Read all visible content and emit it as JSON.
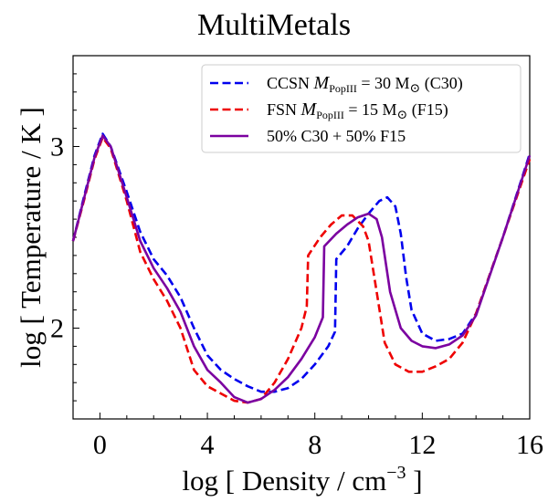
{
  "chart_data": {
    "type": "line",
    "title": "MultiMetals",
    "xlabel": "log [ Density / cm",
    "xlabel_sup": "−3",
    "xlabel_end": " ]",
    "ylabel": "log [ Temperature / K ]",
    "xlim": [
      -1,
      16
    ],
    "ylim": [
      1.5,
      3.5
    ],
    "xticks": [
      0,
      4,
      8,
      12,
      16
    ],
    "xtick_labels": [
      "0",
      "4",
      "8",
      "12",
      "16"
    ],
    "yticks": [
      2,
      3
    ],
    "ytick_labels": [
      "2",
      "3"
    ],
    "legend_position": "top-right",
    "grid": false,
    "series": [
      {
        "name": "CCSN M_PopIII = 30 M⊙ (C30)",
        "legend_parts": [
          "CCSN ",
          "M",
          "PopIII",
          " = 30 M",
          "⊙",
          " (C30)"
        ],
        "color": "#0000ee",
        "style": "dashed",
        "points": [
          [
            -1.0,
            2.48
          ],
          [
            -0.6,
            2.72
          ],
          [
            -0.2,
            2.95
          ],
          [
            0.1,
            3.07
          ],
          [
            0.4,
            3.0
          ],
          [
            1.0,
            2.75
          ],
          [
            1.5,
            2.53
          ],
          [
            2.0,
            2.38
          ],
          [
            2.5,
            2.29
          ],
          [
            3.0,
            2.17
          ],
          [
            3.5,
            2.0
          ],
          [
            4.0,
            1.85
          ],
          [
            4.5,
            1.77
          ],
          [
            5.0,
            1.72
          ],
          [
            5.5,
            1.68
          ],
          [
            6.0,
            1.65
          ],
          [
            6.5,
            1.65
          ],
          [
            7.0,
            1.67
          ],
          [
            7.5,
            1.72
          ],
          [
            8.0,
            1.8
          ],
          [
            8.5,
            1.9
          ],
          [
            8.75,
            1.98
          ],
          [
            8.8,
            2.38
          ],
          [
            9.2,
            2.45
          ],
          [
            9.6,
            2.55
          ],
          [
            10.0,
            2.63
          ],
          [
            10.4,
            2.7
          ],
          [
            10.7,
            2.72
          ],
          [
            11.0,
            2.67
          ],
          [
            11.2,
            2.52
          ],
          [
            11.4,
            2.28
          ],
          [
            11.6,
            2.1
          ],
          [
            12.0,
            1.97
          ],
          [
            12.5,
            1.93
          ],
          [
            13.0,
            1.94
          ],
          [
            13.5,
            1.97
          ],
          [
            14.0,
            2.08
          ],
          [
            15.0,
            2.5
          ],
          [
            16.0,
            2.96
          ]
        ]
      },
      {
        "name": "FSN M_PopIII = 15 M⊙ (F15)",
        "legend_parts": [
          "FSN  ",
          "M",
          "PopIII",
          " = 15 M",
          "⊙",
          " (F15)"
        ],
        "color": "#ee0000",
        "style": "dashed",
        "points": [
          [
            -1.0,
            2.48
          ],
          [
            -0.6,
            2.7
          ],
          [
            -0.2,
            2.93
          ],
          [
            0.1,
            3.05
          ],
          [
            0.4,
            2.99
          ],
          [
            1.0,
            2.7
          ],
          [
            1.5,
            2.42
          ],
          [
            2.0,
            2.27
          ],
          [
            2.5,
            2.15
          ],
          [
            3.0,
            2.0
          ],
          [
            3.5,
            1.77
          ],
          [
            4.0,
            1.68
          ],
          [
            4.5,
            1.64
          ],
          [
            5.0,
            1.6
          ],
          [
            5.5,
            1.59
          ],
          [
            6.0,
            1.61
          ],
          [
            6.5,
            1.7
          ],
          [
            7.0,
            1.83
          ],
          [
            7.5,
            2.0
          ],
          [
            7.7,
            2.12
          ],
          [
            7.75,
            2.4
          ],
          [
            8.2,
            2.5
          ],
          [
            8.6,
            2.57
          ],
          [
            9.0,
            2.62
          ],
          [
            9.4,
            2.62
          ],
          [
            9.8,
            2.56
          ],
          [
            10.0,
            2.48
          ],
          [
            10.3,
            2.2
          ],
          [
            10.6,
            1.92
          ],
          [
            11.0,
            1.8
          ],
          [
            11.5,
            1.76
          ],
          [
            12.0,
            1.76
          ],
          [
            12.5,
            1.79
          ],
          [
            13.0,
            1.83
          ],
          [
            13.5,
            1.92
          ],
          [
            14.0,
            2.08
          ],
          [
            15.0,
            2.5
          ],
          [
            16.0,
            2.93
          ]
        ]
      },
      {
        "name": "50% C30 + 50% F15",
        "legend_parts": [
          "50% C30 + 50% F15"
        ],
        "color": "#7b00a0",
        "style": "solid",
        "points": [
          [
            -1.0,
            2.48
          ],
          [
            -0.6,
            2.71
          ],
          [
            -0.2,
            2.94
          ],
          [
            0.1,
            3.06
          ],
          [
            0.4,
            3.0
          ],
          [
            1.0,
            2.72
          ],
          [
            1.5,
            2.48
          ],
          [
            2.0,
            2.33
          ],
          [
            2.5,
            2.22
          ],
          [
            3.0,
            2.09
          ],
          [
            3.5,
            1.9
          ],
          [
            4.0,
            1.77
          ],
          [
            4.5,
            1.7
          ],
          [
            5.0,
            1.62
          ],
          [
            5.5,
            1.59
          ],
          [
            6.0,
            1.61
          ],
          [
            6.5,
            1.66
          ],
          [
            7.0,
            1.73
          ],
          [
            7.5,
            1.83
          ],
          [
            8.0,
            1.95
          ],
          [
            8.3,
            2.06
          ],
          [
            8.35,
            2.45
          ],
          [
            8.8,
            2.52
          ],
          [
            9.2,
            2.57
          ],
          [
            9.6,
            2.61
          ],
          [
            10.0,
            2.63
          ],
          [
            10.3,
            2.6
          ],
          [
            10.5,
            2.5
          ],
          [
            10.8,
            2.2
          ],
          [
            11.2,
            2.0
          ],
          [
            11.6,
            1.93
          ],
          [
            12.0,
            1.9
          ],
          [
            12.5,
            1.89
          ],
          [
            13.0,
            1.91
          ],
          [
            13.5,
            1.96
          ],
          [
            14.0,
            2.07
          ],
          [
            15.0,
            2.5
          ],
          [
            16.0,
            2.95
          ]
        ]
      }
    ]
  }
}
